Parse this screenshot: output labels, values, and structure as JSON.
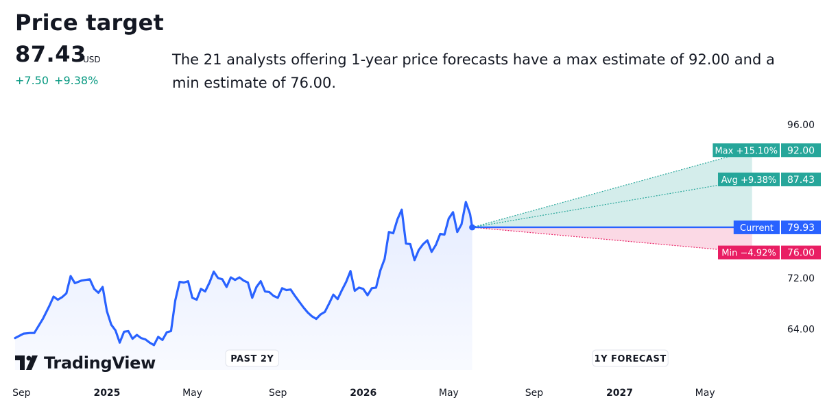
{
  "header": {
    "title": "Price target",
    "price": "87.43",
    "currency": "USD",
    "change_abs": "+7.50",
    "change_pct": "+9.38%",
    "description": "The 21 analysts offering 1-year price forecasts have a max estimate of 92.00 and a min estimate of 76.00."
  },
  "brand": {
    "name": "TradingView"
  },
  "colors": {
    "line": "#2962ff",
    "up": "#26a69a",
    "down": "#e91e63",
    "current": "#2962ff",
    "text_green": "#089981"
  },
  "chart_data": {
    "type": "line",
    "ylim": [
      58,
      97
    ],
    "y_ticks": [
      96,
      72,
      64
    ],
    "y_tick_labels": [
      "96.00",
      "72.00",
      "64.00"
    ],
    "x_ticks": [
      {
        "t": 0,
        "label": "Sep",
        "bold": false
      },
      {
        "t": 4,
        "label": "2025",
        "bold": true
      },
      {
        "t": 8,
        "label": "May",
        "bold": false
      },
      {
        "t": 12,
        "label": "Sep",
        "bold": false
      },
      {
        "t": 16,
        "label": "2026",
        "bold": true
      },
      {
        "t": 20,
        "label": "May",
        "bold": false
      },
      {
        "t": 24,
        "label": "Sep",
        "bold": false
      },
      {
        "t": 28,
        "label": "2027",
        "bold": true
      },
      {
        "t": 32,
        "label": "May",
        "bold": false
      }
    ],
    "x_range": [
      -0.3,
      34.2
    ],
    "history_end": 22.28,
    "forecast_end": 34.2,
    "sections": [
      "PAST 2Y",
      "1Y FORECAST"
    ],
    "series": [
      {
        "points": [
          [
            -0.3,
            62.6
          ],
          [
            0.1,
            63.3
          ],
          [
            0.4,
            63.4
          ],
          [
            0.6,
            63.4
          ],
          [
            1.0,
            65.6
          ],
          [
            1.3,
            67.6
          ],
          [
            1.5,
            69.1
          ],
          [
            1.7,
            68.6
          ],
          [
            1.9,
            69.0
          ],
          [
            2.1,
            69.6
          ],
          [
            2.3,
            72.3
          ],
          [
            2.5,
            71.2
          ],
          [
            2.8,
            71.6
          ],
          [
            3.0,
            71.7
          ],
          [
            3.2,
            71.8
          ],
          [
            3.4,
            70.3
          ],
          [
            3.6,
            69.7
          ],
          [
            3.8,
            70.6
          ],
          [
            4.0,
            66.8
          ],
          [
            4.2,
            64.7
          ],
          [
            4.4,
            63.8
          ],
          [
            4.6,
            61.9
          ],
          [
            4.8,
            63.6
          ],
          [
            5.0,
            63.7
          ],
          [
            5.2,
            62.5
          ],
          [
            5.4,
            63.1
          ],
          [
            5.6,
            62.6
          ],
          [
            5.8,
            62.4
          ],
          [
            6.0,
            61.9
          ],
          [
            6.2,
            61.5
          ],
          [
            6.4,
            62.8
          ],
          [
            6.6,
            62.3
          ],
          [
            6.8,
            63.5
          ],
          [
            7.0,
            63.7
          ],
          [
            7.2,
            68.5
          ],
          [
            7.4,
            71.4
          ],
          [
            7.6,
            71.3
          ],
          [
            7.8,
            71.5
          ],
          [
            8.0,
            68.9
          ],
          [
            8.2,
            68.6
          ],
          [
            8.4,
            70.3
          ],
          [
            8.6,
            69.9
          ],
          [
            8.8,
            71.3
          ],
          [
            9.0,
            73.0
          ],
          [
            9.2,
            72.0
          ],
          [
            9.4,
            71.8
          ],
          [
            9.6,
            70.6
          ],
          [
            9.8,
            72.1
          ],
          [
            10.0,
            71.7
          ],
          [
            10.2,
            72.1
          ],
          [
            10.4,
            71.6
          ],
          [
            10.6,
            71.3
          ],
          [
            10.8,
            68.9
          ],
          [
            11.0,
            70.6
          ],
          [
            11.2,
            71.5
          ],
          [
            11.4,
            69.9
          ],
          [
            11.6,
            69.8
          ],
          [
            11.8,
            69.2
          ],
          [
            12.0,
            68.9
          ],
          [
            12.2,
            70.4
          ],
          [
            12.4,
            70.1
          ],
          [
            12.6,
            70.2
          ],
          [
            12.8,
            69.2
          ],
          [
            13.0,
            68.3
          ],
          [
            13.2,
            67.4
          ],
          [
            13.4,
            66.6
          ],
          [
            13.6,
            66.0
          ],
          [
            13.8,
            65.6
          ],
          [
            14.0,
            66.3
          ],
          [
            14.2,
            66.7
          ],
          [
            14.4,
            68.0
          ],
          [
            14.6,
            69.4
          ],
          [
            14.8,
            68.7
          ],
          [
            15.0,
            70.1
          ],
          [
            15.2,
            71.4
          ],
          [
            15.4,
            73.1
          ],
          [
            15.6,
            70.0
          ],
          [
            15.8,
            70.5
          ],
          [
            16.0,
            70.3
          ],
          [
            16.2,
            69.3
          ],
          [
            16.4,
            70.4
          ],
          [
            16.6,
            70.5
          ],
          [
            16.8,
            73.2
          ],
          [
            17.0,
            75.0
          ],
          [
            17.2,
            79.2
          ],
          [
            17.4,
            79.0
          ],
          [
            17.6,
            81.2
          ],
          [
            17.8,
            82.7
          ],
          [
            18.0,
            77.4
          ],
          [
            18.2,
            77.3
          ],
          [
            18.4,
            74.8
          ],
          [
            18.6,
            76.4
          ],
          [
            18.8,
            77.3
          ],
          [
            19.0,
            77.9
          ],
          [
            19.2,
            76.1
          ],
          [
            19.4,
            77.2
          ],
          [
            19.6,
            78.9
          ],
          [
            19.8,
            78.8
          ],
          [
            20.0,
            81.3
          ],
          [
            20.2,
            82.3
          ],
          [
            20.4,
            79.2
          ],
          [
            20.6,
            80.4
          ],
          [
            20.8,
            83.9
          ],
          [
            21.0,
            82.0
          ],
          [
            21.1,
            79.93
          ]
        ]
      }
    ],
    "current": {
      "value": 79.93,
      "label": "Current",
      "value_label": "79.93"
    },
    "forecasts": [
      {
        "name": "Max",
        "pct": "+15.10%",
        "value": 92.0,
        "value_label": "92.00"
      },
      {
        "name": "Avg",
        "pct": "+9.38%",
        "value": 87.43,
        "value_label": "87.43"
      },
      {
        "name": "Min",
        "pct": "−4.92%",
        "value": 76.0,
        "value_label": "76.00"
      }
    ]
  }
}
